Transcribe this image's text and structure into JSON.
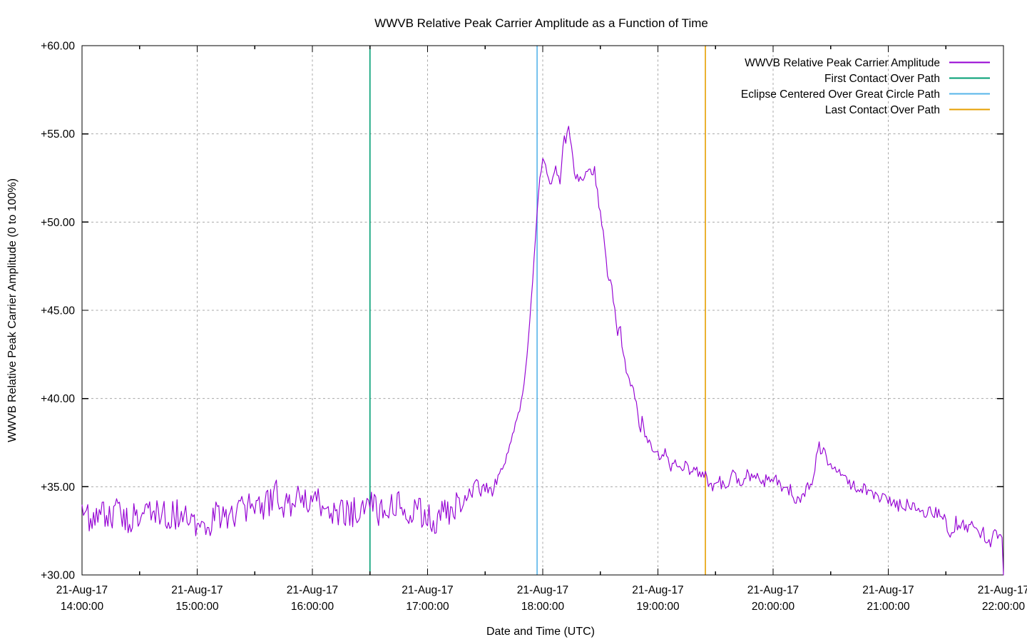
{
  "chart_data": {
    "type": "line",
    "title": "WWVB Relative Peak Carrier Amplitude as a Function of Time",
    "xlabel": "Date and Time (UTC)",
    "ylabel": "WWVB Relative Peak Carrier Amplitude (0 to 100%)",
    "grid": true,
    "grid_color": "#a8a8a8",
    "axis_color": "#000000",
    "legend_position": "top-right-inside",
    "xlim_hours": [
      14,
      22
    ],
    "ylim": [
      30,
      60
    ],
    "y_ticks": [
      "+30.00",
      "+35.00",
      "+40.00",
      "+45.00",
      "+50.00",
      "+55.00",
      "+60.00"
    ],
    "x_tick_date": "21-Aug-17",
    "x_tick_times": [
      "14:00:00",
      "15:00:00",
      "16:00:00",
      "17:00:00",
      "18:00:00",
      "19:00:00",
      "20:00:00",
      "21:00:00",
      "22:00:00"
    ],
    "legend": [
      {
        "label": "WWVB Relative Peak Carrier Amplitude",
        "color": "#9400D3"
      },
      {
        "label": "First Contact Over Path",
        "color": "#009E73"
      },
      {
        "label": "Eclipse Centered Over Great Circle Path",
        "color": "#56B4E9"
      },
      {
        "label": "Last Contact Over Path",
        "color": "#E69F00"
      }
    ],
    "event_lines": [
      {
        "id": "first-contact-line",
        "label": "First Contact Over Path",
        "time_utc": "16:30:00",
        "hour": 16.5,
        "color": "#009E73"
      },
      {
        "id": "eclipse-centered-line",
        "label": "Eclipse Centered Over Great Circle Path",
        "time_utc": "17:57:00",
        "hour": 17.951,
        "color": "#56B4E9"
      },
      {
        "id": "last-contact-line",
        "label": "Last Contact Over Path",
        "time_utc": "19:25:00",
        "hour": 19.412,
        "color": "#E69F00"
      }
    ],
    "series": [
      {
        "name": "WWVB Relative Peak Carrier Amplitude",
        "color": "#9400D3",
        "x_units": "hours UTC on 21-Aug-17",
        "y_units": "relative amplitude (0 to 100%)",
        "sample_step_hours": 0.0125,
        "noise_seed": 20170821,
        "noise_regions": [
          [
            14.0,
            17.3,
            0.85
          ],
          [
            17.3,
            17.64,
            0.45
          ],
          [
            17.64,
            17.96,
            0.15
          ],
          [
            17.96,
            18.1,
            0.3
          ],
          [
            18.1,
            18.3,
            0.15
          ],
          [
            18.3,
            18.5,
            0.25
          ],
          [
            18.5,
            18.82,
            0.25
          ],
          [
            18.82,
            19.4,
            0.3
          ],
          [
            19.4,
            20.32,
            0.35
          ],
          [
            20.32,
            21.0,
            0.3
          ],
          [
            21.0,
            21.97,
            0.45
          ],
          [
            21.97,
            22.0,
            0.05
          ]
        ],
        "keypoints": [
          [
            14.0,
            33.4
          ],
          [
            14.08,
            33.2
          ],
          [
            14.17,
            33.7
          ],
          [
            14.25,
            33.4
          ],
          [
            14.33,
            33.6
          ],
          [
            14.42,
            33.1
          ],
          [
            14.5,
            33.5
          ],
          [
            14.58,
            33.3
          ],
          [
            14.67,
            33.6
          ],
          [
            14.75,
            33.2
          ],
          [
            14.83,
            33.5
          ],
          [
            14.92,
            33.3
          ],
          [
            15.0,
            32.9
          ],
          [
            15.08,
            32.8
          ],
          [
            15.17,
            33.4
          ],
          [
            15.25,
            33.3
          ],
          [
            15.33,
            33.6
          ],
          [
            15.42,
            33.8
          ],
          [
            15.5,
            33.7
          ],
          [
            15.58,
            33.9
          ],
          [
            15.65,
            34.2
          ],
          [
            15.69,
            35.1
          ],
          [
            15.73,
            33.9
          ],
          [
            15.8,
            34.1
          ],
          [
            15.88,
            34.2
          ],
          [
            15.95,
            34.4
          ],
          [
            16.03,
            34.2
          ],
          [
            16.1,
            33.9
          ],
          [
            16.17,
            33.5
          ],
          [
            16.25,
            33.7
          ],
          [
            16.33,
            33.4
          ],
          [
            16.42,
            33.9
          ],
          [
            16.5,
            34.0
          ],
          [
            16.58,
            33.6
          ],
          [
            16.67,
            33.8
          ],
          [
            16.75,
            33.9
          ],
          [
            16.83,
            33.7
          ],
          [
            16.92,
            33.5
          ],
          [
            17.0,
            33.6
          ],
          [
            17.07,
            32.9
          ],
          [
            17.13,
            33.7
          ],
          [
            17.2,
            33.4
          ],
          [
            17.27,
            34.0
          ],
          [
            17.33,
            34.4
          ],
          [
            17.38,
            34.8
          ],
          [
            17.43,
            35.1
          ],
          [
            17.47,
            34.6
          ],
          [
            17.51,
            35.2
          ],
          [
            17.55,
            34.8
          ],
          [
            17.59,
            35.1
          ],
          [
            17.62,
            35.4
          ],
          [
            17.65,
            35.9
          ],
          [
            17.68,
            36.6
          ],
          [
            17.71,
            37.3
          ],
          [
            17.74,
            38.0
          ],
          [
            17.77,
            38.8
          ],
          [
            17.8,
            39.4
          ],
          [
            17.83,
            40.5
          ],
          [
            17.86,
            42.2
          ],
          [
            17.89,
            44.5
          ],
          [
            17.91,
            46.5
          ],
          [
            17.93,
            48.5
          ],
          [
            17.95,
            50.6
          ],
          [
            17.97,
            52.0
          ],
          [
            17.99,
            53.2
          ],
          [
            18.01,
            53.8
          ],
          [
            18.03,
            53.3
          ],
          [
            18.06,
            52.1
          ],
          [
            18.08,
            52.0
          ],
          [
            18.11,
            53.4
          ],
          [
            18.13,
            52.6
          ],
          [
            18.15,
            52.3
          ],
          [
            18.17,
            53.8
          ],
          [
            18.19,
            55.1
          ],
          [
            18.2,
            54.5
          ],
          [
            18.22,
            55.6
          ],
          [
            18.24,
            54.7
          ],
          [
            18.26,
            53.6
          ],
          [
            18.28,
            52.6
          ],
          [
            18.31,
            52.5
          ],
          [
            18.34,
            52.4
          ],
          [
            18.38,
            52.7
          ],
          [
            18.41,
            52.8
          ],
          [
            18.43,
            52.5
          ],
          [
            18.45,
            53.0
          ],
          [
            18.47,
            51.9
          ],
          [
            18.49,
            50.8
          ],
          [
            18.51,
            50.0
          ],
          [
            18.54,
            48.6
          ],
          [
            18.56,
            47.0
          ],
          [
            18.59,
            46.7
          ],
          [
            18.62,
            45.4
          ],
          [
            18.64,
            44.4
          ],
          [
            18.65,
            43.8
          ],
          [
            18.67,
            44.1
          ],
          [
            18.7,
            42.5
          ],
          [
            18.73,
            41.5
          ],
          [
            18.76,
            40.9
          ],
          [
            18.79,
            40.3
          ],
          [
            18.81,
            39.8
          ],
          [
            18.83,
            38.9
          ],
          [
            18.85,
            38.3
          ],
          [
            18.86,
            38.8
          ],
          [
            18.88,
            38.2
          ],
          [
            18.9,
            37.8
          ],
          [
            18.92,
            37.4
          ],
          [
            18.95,
            37.3
          ],
          [
            18.98,
            37.2
          ],
          [
            19.01,
            36.6
          ],
          [
            19.04,
            36.9
          ],
          [
            19.06,
            37.0
          ],
          [
            19.09,
            36.3
          ],
          [
            19.12,
            36.1
          ],
          [
            19.15,
            36.3
          ],
          [
            19.18,
            35.9
          ],
          [
            19.22,
            36.1
          ],
          [
            19.25,
            36.2
          ],
          [
            19.28,
            35.8
          ],
          [
            19.32,
            36.0
          ],
          [
            19.36,
            35.8
          ],
          [
            19.41,
            35.6
          ],
          [
            19.45,
            35.2
          ],
          [
            19.48,
            34.9
          ],
          [
            19.52,
            35.4
          ],
          [
            19.56,
            35.1
          ],
          [
            19.59,
            34.9
          ],
          [
            19.63,
            35.4
          ],
          [
            19.66,
            35.7
          ],
          [
            19.7,
            35.4
          ],
          [
            19.73,
            35.3
          ],
          [
            19.78,
            35.8
          ],
          [
            19.82,
            35.3
          ],
          [
            19.87,
            35.7
          ],
          [
            19.91,
            35.2
          ],
          [
            19.97,
            35.5
          ],
          [
            20.04,
            35.3
          ],
          [
            20.1,
            34.7
          ],
          [
            20.15,
            34.9
          ],
          [
            20.19,
            34.4
          ],
          [
            20.22,
            34.1
          ],
          [
            20.26,
            34.7
          ],
          [
            20.3,
            34.9
          ],
          [
            20.33,
            34.9
          ],
          [
            20.36,
            35.8
          ],
          [
            20.38,
            36.8
          ],
          [
            20.4,
            37.5
          ],
          [
            20.42,
            36.9
          ],
          [
            20.44,
            37.1
          ],
          [
            20.46,
            36.6
          ],
          [
            20.5,
            36.3
          ],
          [
            20.53,
            36.1
          ],
          [
            20.56,
            35.9
          ],
          [
            20.58,
            35.7
          ],
          [
            20.61,
            35.4
          ],
          [
            20.64,
            35.3
          ],
          [
            20.66,
            35.1
          ],
          [
            20.72,
            35.0
          ],
          [
            20.77,
            34.9
          ],
          [
            20.8,
            34.9
          ],
          [
            20.84,
            34.7
          ],
          [
            20.87,
            34.5
          ],
          [
            20.92,
            34.4
          ],
          [
            20.98,
            34.3
          ],
          [
            21.03,
            34.1
          ],
          [
            21.09,
            34.0
          ],
          [
            21.15,
            33.9
          ],
          [
            21.2,
            33.9
          ],
          [
            21.26,
            33.8
          ],
          [
            21.31,
            33.7
          ],
          [
            21.36,
            33.6
          ],
          [
            21.4,
            33.5
          ],
          [
            21.45,
            33.3
          ],
          [
            21.49,
            33.2
          ],
          [
            21.52,
            32.6
          ],
          [
            21.54,
            32.2
          ],
          [
            21.58,
            32.9
          ],
          [
            21.62,
            33.0
          ],
          [
            21.65,
            32.9
          ],
          [
            21.68,
            32.8
          ],
          [
            21.72,
            32.7
          ],
          [
            21.77,
            32.6
          ],
          [
            21.8,
            32.4
          ],
          [
            21.83,
            32.3
          ],
          [
            21.86,
            32.0
          ],
          [
            21.88,
            31.8
          ],
          [
            21.91,
            32.4
          ],
          [
            21.93,
            32.6
          ],
          [
            21.96,
            32.4
          ],
          [
            21.98,
            32.3
          ],
          [
            21.995,
            32.0
          ],
          [
            22.0,
            30.0
          ]
        ]
      }
    ]
  }
}
